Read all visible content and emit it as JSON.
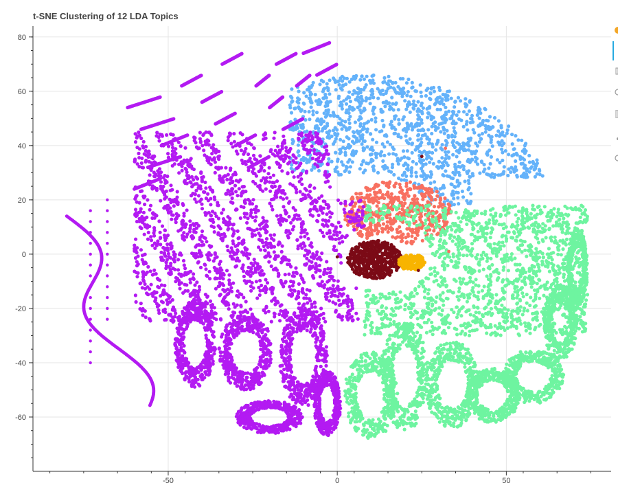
{
  "chart_data": {
    "type": "scatter",
    "title": "t-SNE Clustering of 12 LDA Topics",
    "xlim": [
      -90,
      81
    ],
    "ylim": [
      -80,
      84
    ],
    "xticks": [
      -50,
      0,
      50
    ],
    "yticks": [
      80,
      60,
      40,
      20,
      0,
      -20,
      -40,
      -60
    ],
    "grid": true,
    "xlabel": "",
    "ylabel": "",
    "series": [
      {
        "color": "#b31af2",
        "topic": "purple",
        "points_approx": "main left cluster with stripes"
      },
      {
        "color": "#64b2fa",
        "topic": "blue",
        "region_x": [
          -15,
          63
        ],
        "region_y": [
          18,
          68
        ]
      },
      {
        "color": "#6ef4a0",
        "topic": "green",
        "region_x": [
          0,
          75
        ],
        "region_y": [
          -72,
          20
        ]
      },
      {
        "color": "#f87060",
        "topic": "red",
        "region_x": [
          2,
          35
        ],
        "region_y": [
          0,
          28
        ]
      },
      {
        "color": "#7b0a16",
        "topic": "dark-red",
        "center": [
          11,
          -2
        ]
      },
      {
        "color": "#f8b400",
        "topic": "gold",
        "center": [
          22,
          -3
        ]
      }
    ]
  },
  "toolbar": {
    "tools": [
      "pan-icon",
      "box-zoom-icon",
      "wheel-zoom-icon",
      "save-icon",
      "reset-icon",
      "hover-icon"
    ]
  }
}
